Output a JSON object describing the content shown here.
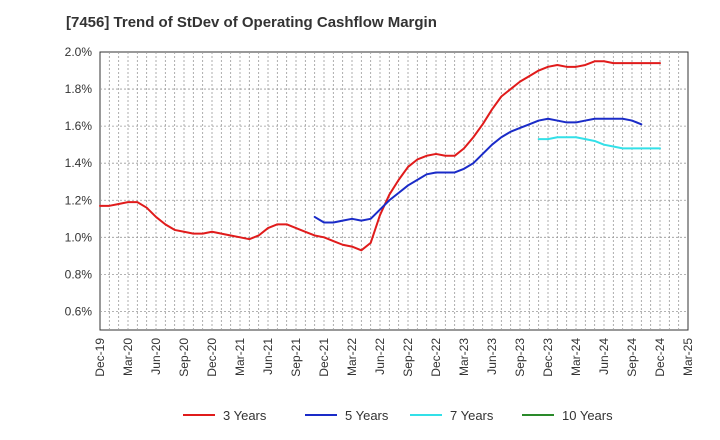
{
  "chart_data": {
    "type": "line",
    "title": "[7456]  Trend of StDev of Operating Cashflow Margin",
    "xlabel": "",
    "ylabel": "",
    "x_tick_labels": [
      "Dec-19",
      "Mar-20",
      "Jun-20",
      "Sep-20",
      "Dec-20",
      "Mar-21",
      "Jun-21",
      "Sep-21",
      "Dec-21",
      "Mar-22",
      "Jun-22",
      "Sep-22",
      "Dec-22",
      "Mar-23",
      "Jun-23",
      "Sep-23",
      "Dec-23",
      "Mar-24",
      "Jun-24",
      "Sep-24",
      "Dec-24",
      "Mar-25"
    ],
    "y_tick_labels": [
      "0.6%",
      "0.8%",
      "1.0%",
      "1.2%",
      "1.4%",
      "1.6%",
      "1.8%",
      "2.0%"
    ],
    "y_ticks": [
      0.6,
      0.8,
      1.0,
      1.2,
      1.4,
      1.6,
      1.8,
      2.0
    ],
    "ylim": [
      0.5,
      2.0
    ],
    "grid": true,
    "legend_position": "bottom",
    "x_months": [
      "2019-12",
      "2020-01",
      "2020-02",
      "2020-03",
      "2020-04",
      "2020-05",
      "2020-06",
      "2020-07",
      "2020-08",
      "2020-09",
      "2020-10",
      "2020-11",
      "2020-12",
      "2021-01",
      "2021-02",
      "2021-03",
      "2021-04",
      "2021-05",
      "2021-06",
      "2021-07",
      "2021-08",
      "2021-09",
      "2021-10",
      "2021-11",
      "2021-12",
      "2022-01",
      "2022-02",
      "2022-03",
      "2022-04",
      "2022-05",
      "2022-06",
      "2022-07",
      "2022-08",
      "2022-09",
      "2022-10",
      "2022-11",
      "2022-12",
      "2023-01",
      "2023-02",
      "2023-03",
      "2023-04",
      "2023-05",
      "2023-06",
      "2023-07",
      "2023-08",
      "2023-09",
      "2023-10",
      "2023-11",
      "2023-12",
      "2024-01",
      "2024-02",
      "2024-03",
      "2024-04",
      "2024-05",
      "2024-06",
      "2024-07",
      "2024-08",
      "2024-09",
      "2024-10",
      "2024-11",
      "2024-12",
      "2025-01",
      "2025-02",
      "2025-03"
    ],
    "series": [
      {
        "name": "3 Years",
        "color": "#e01b1b",
        "start": "2019-12",
        "values": [
          1.17,
          1.17,
          1.18,
          1.19,
          1.19,
          1.16,
          1.11,
          1.07,
          1.04,
          1.03,
          1.02,
          1.02,
          1.03,
          1.02,
          1.01,
          1.0,
          0.99,
          1.01,
          1.05,
          1.07,
          1.07,
          1.05,
          1.03,
          1.01,
          1.0,
          0.98,
          0.96,
          0.95,
          0.93,
          0.97,
          1.12,
          1.23,
          1.31,
          1.38,
          1.42,
          1.44,
          1.45,
          1.44,
          1.44,
          1.48,
          1.54,
          1.61,
          1.69,
          1.76,
          1.8,
          1.84,
          1.87,
          1.9,
          1.92,
          1.93,
          1.92,
          1.92,
          1.93,
          1.95,
          1.95,
          1.94,
          1.94,
          1.94,
          1.94,
          1.94,
          1.94
        ]
      },
      {
        "name": "5 Years",
        "color": "#1a2bc8",
        "start": "2021-11",
        "values": [
          1.11,
          1.08,
          1.08,
          1.09,
          1.1,
          1.09,
          1.1,
          1.15,
          1.2,
          1.24,
          1.28,
          1.31,
          1.34,
          1.35,
          1.35,
          1.35,
          1.37,
          1.4,
          1.45,
          1.5,
          1.54,
          1.57,
          1.59,
          1.61,
          1.63,
          1.64,
          1.63,
          1.62,
          1.62,
          1.63,
          1.64,
          1.64,
          1.64,
          1.64,
          1.63,
          1.61
        ]
      },
      {
        "name": "7 Years",
        "color": "#33e0e8",
        "start": "2023-11",
        "values": [
          1.53,
          1.53,
          1.54,
          1.54,
          1.54,
          1.53,
          1.52,
          1.5,
          1.49,
          1.48,
          1.48,
          1.48,
          1.48,
          1.48
        ]
      },
      {
        "name": "10 Years",
        "color": "#2a8a2a",
        "start": "2025-03",
        "values": []
      }
    ]
  }
}
